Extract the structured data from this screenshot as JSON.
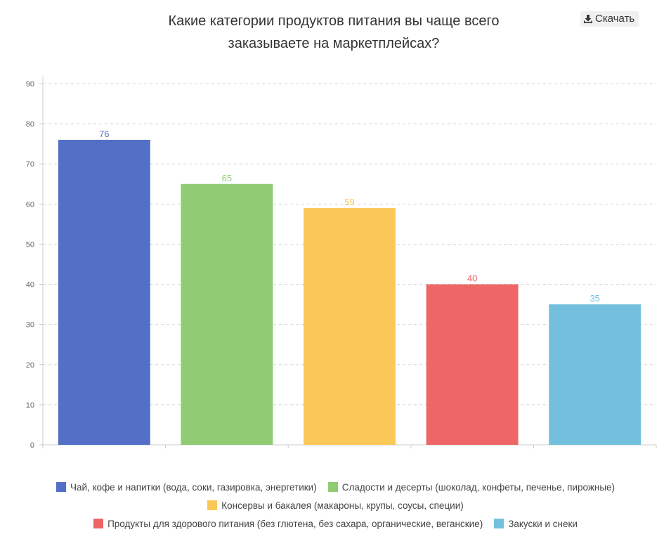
{
  "header": {
    "title_line1": "Какие категории продуктов питания вы чаще всего",
    "title_line2": "заказываете на маркетплейсах?",
    "download_label": "Скачать",
    "download_icon": "download-icon"
  },
  "chart_data": {
    "type": "bar",
    "title": "Какие категории продуктов питания вы чаще всего заказываете на маркетплейсах?",
    "xlabel": "",
    "ylabel": "",
    "ylim": [
      0,
      90
    ],
    "yticks": [
      0,
      10,
      20,
      30,
      40,
      50,
      60,
      70,
      80,
      90
    ],
    "grid": true,
    "legend_position": "bottom",
    "categories": [
      "Чай, кофе и напитки (вода, соки, газировка, энергетики)",
      "Сладости и десерты (шоколад, конфеты, печенье, пирожные)",
      "Консервы и бакалея (макароны, крупы, соусы, специи)",
      "Продукты для здорового питания (без глютена, без сахара, органические, веганские)",
      "Закуски и снеки"
    ],
    "values": [
      76,
      65,
      59,
      40,
      35
    ],
    "colors": [
      "#5470c6",
      "#91cc75",
      "#fac858",
      "#ee6666",
      "#73c0de"
    ]
  }
}
